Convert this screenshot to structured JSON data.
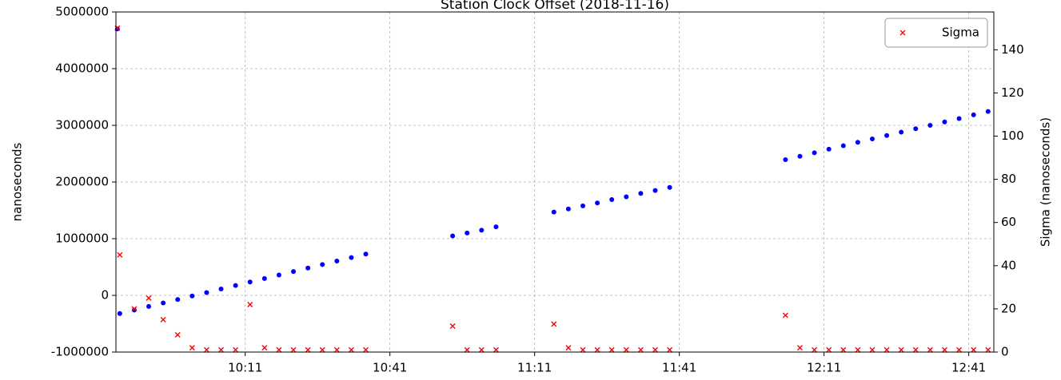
{
  "chart_data": {
    "type": "scatter",
    "title": "Station Clock Offset (2018-11-16)",
    "y_label": "nanoseconds",
    "y2_label": "Sigma (nanoseconds)",
    "x": [
      584.5,
      585,
      588,
      591,
      594,
      597,
      600,
      603,
      606,
      609,
      612,
      615,
      618,
      621,
      624,
      627,
      630,
      633,
      636,
      639,
      642,
      645,
      648,
      651,
      654,
      657,
      660,
      663,
      666,
      669,
      672,
      675,
      678,
      681,
      684,
      687,
      690,
      693,
      696,
      699,
      702,
      705,
      708,
      711,
      714,
      717,
      720,
      723,
      726,
      729,
      732,
      735,
      738,
      741,
      744,
      747,
      750,
      753,
      756,
      759,
      762,
      765
    ],
    "series": [
      {
        "color": "#0000ff",
        "marker": "dot",
        "values": [
          4700000,
          -320000,
          -258000,
          -195000,
          -133000,
          -73000,
          -11000,
          50000,
          112000,
          174000,
          236000,
          297000,
          359000,
          420000,
          482000,
          544000,
          606000,
          667000,
          729000,
          null,
          null,
          null,
          null,
          null,
          1050000,
          1100000,
          1150000,
          1210000,
          null,
          null,
          null,
          1470000,
          1525000,
          1580000,
          1630000,
          1690000,
          1740000,
          1800000,
          1850000,
          1905000,
          null,
          null,
          null,
          null,
          null,
          null,
          null,
          2395000,
          2455000,
          2515000,
          2580000,
          2640000,
          2700000,
          2760000,
          2820000,
          2880000,
          2940000,
          3000000,
          3060000,
          3120000,
          3185000,
          3245000
        ]
      },
      {
        "name": "Sigma",
        "color": "#ff0000",
        "marker": "x",
        "axis": "y2",
        "values": [
          150,
          45,
          20,
          25,
          15,
          8,
          2,
          1,
          1,
          1,
          22,
          2,
          1,
          1,
          1,
          1,
          1,
          1,
          1,
          null,
          null,
          null,
          null,
          null,
          12,
          1,
          1,
          1,
          null,
          null,
          null,
          13,
          2,
          1,
          1,
          1,
          1,
          1,
          1,
          1,
          null,
          null,
          null,
          null,
          null,
          null,
          null,
          17,
          2,
          1,
          1,
          1,
          1,
          1,
          1,
          1,
          1,
          1,
          1,
          1,
          1,
          1
        ]
      }
    ],
    "xlim": [
      584.2,
      766.2
    ],
    "xticks": [
      {
        "value": 611,
        "label": "10:11"
      },
      {
        "value": 641,
        "label": "10:41"
      },
      {
        "value": 671,
        "label": "11:11"
      },
      {
        "value": 701,
        "label": "11:41"
      },
      {
        "value": 731,
        "label": "12:11"
      },
      {
        "value": 761,
        "label": "12:41"
      }
    ],
    "ylim": [
      -1000000,
      5000000
    ],
    "yticks": [
      -1000000,
      0,
      1000000,
      2000000,
      3000000,
      4000000,
      5000000
    ],
    "y2lim": [
      0,
      157.5
    ],
    "y2ticks": [
      0,
      20,
      40,
      60,
      80,
      100,
      120,
      140
    ],
    "grid": true,
    "legend": "upper right"
  }
}
